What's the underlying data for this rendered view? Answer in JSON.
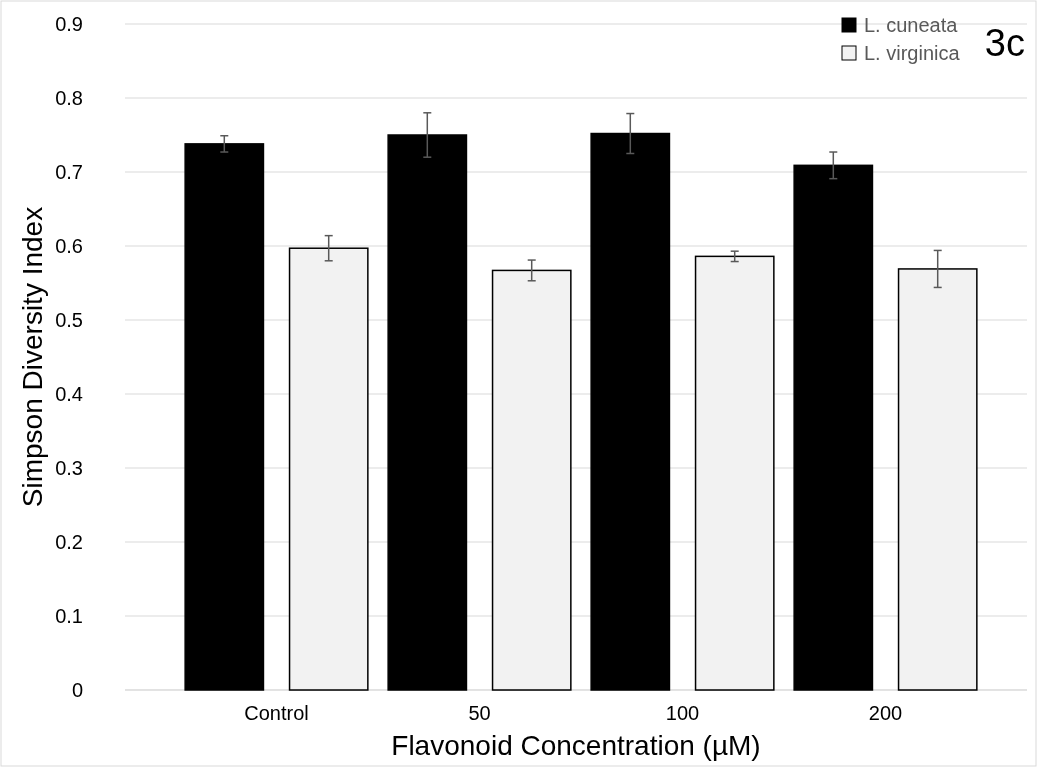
{
  "chart_data": {
    "type": "bar",
    "xlabel": "Flavonoid Concentration (µM)",
    "ylabel": "Simpson Diversity Index",
    "categories": [
      "Control",
      "50",
      "100",
      "200"
    ],
    "series": [
      {
        "name": "L. cuneata",
        "color": "#000000",
        "values": [
          0.738,
          0.75,
          0.752,
          0.709
        ],
        "errors": [
          0.011,
          0.03,
          0.027,
          0.018
        ]
      },
      {
        "name": "L. virginica",
        "color": "#f2f2f2",
        "values": [
          0.597,
          0.567,
          0.586,
          0.569
        ],
        "errors": [
          0.017,
          0.014,
          0.007,
          0.025
        ]
      }
    ],
    "ylim": [
      0,
      0.9
    ],
    "yticks": [
      0,
      0.1,
      0.2,
      0.3,
      0.4,
      0.5,
      0.6,
      0.7,
      0.8,
      0.9
    ],
    "grid": "y",
    "legend": "top right",
    "annotations": [
      "3c"
    ]
  }
}
